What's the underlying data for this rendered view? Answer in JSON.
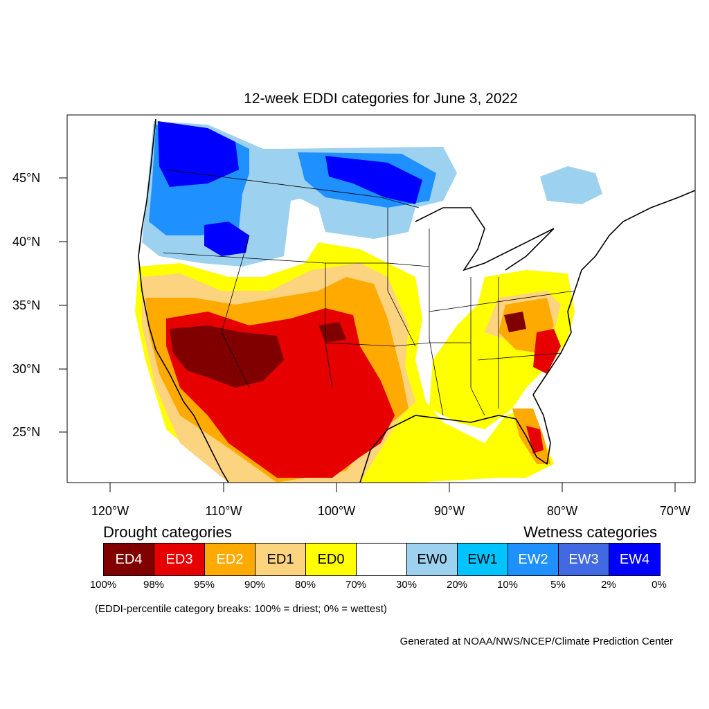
{
  "title": "12-week EDDI categories for June 3, 2022",
  "lat_labels": [
    "45°N",
    "40°N",
    "35°N",
    "30°N",
    "25°N"
  ],
  "lon_labels": [
    "120°W",
    "110°W",
    "100°W",
    "90°W",
    "80°W",
    "70°W"
  ],
  "legend": {
    "drought_heading": "Drought categories",
    "wetness_heading": "Wetness categories",
    "categories": [
      {
        "label": "ED4",
        "color": "#800000",
        "text_color": "#ffffff"
      },
      {
        "label": "ED3",
        "color": "#e60000",
        "text_color": "#ffffff"
      },
      {
        "label": "ED2",
        "color": "#ffaa00",
        "text_color": "#ffffff"
      },
      {
        "label": "ED1",
        "color": "#fcd37f",
        "text_color": "#000000"
      },
      {
        "label": "ED0",
        "color": "#ffff00",
        "text_color": "#000000"
      },
      {
        "label": "",
        "color": "#ffffff",
        "text_color": "#000000"
      },
      {
        "label": "EW0",
        "color": "#9dd1f0",
        "text_color": "#000000"
      },
      {
        "label": "EW1",
        "color": "#00c3ff",
        "text_color": "#000000"
      },
      {
        "label": "EW2",
        "color": "#1e90ff",
        "text_color": "#ffffff"
      },
      {
        "label": "EW3",
        "color": "#4169e1",
        "text_color": "#ffffff"
      },
      {
        "label": "EW4",
        "color": "#0000ff",
        "text_color": "#ffffff"
      }
    ],
    "percentiles": [
      "100%",
      "98%",
      "95%",
      "90%",
      "80%",
      "70%",
      "30%",
      "20%",
      "10%",
      "5%",
      "2%",
      "0%"
    ]
  },
  "note": "(EDDI-percentile category breaks: 100% = driest; 0% = wettest)",
  "credit": "Generated at NOAA/NWS/NCEP/Climate Prediction Center"
}
